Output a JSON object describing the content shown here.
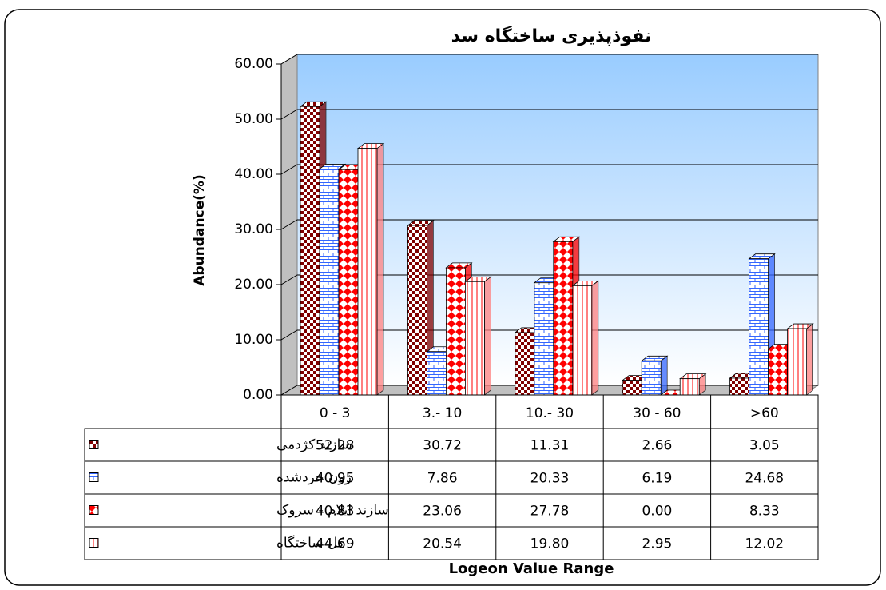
{
  "chart_data": {
    "type": "bar3d",
    "title": "نفوذپذیری ساختگاه سد",
    "y_label": "Abundance(%)",
    "x_label": "Logeon Value Range",
    "categories": [
      "0 - 3",
      "3.- 10",
      "10.- 30",
      "30 - 60",
      ">60"
    ],
    "series": [
      {
        "name": "سازند کژدمی",
        "color": "#800000",
        "values": [
          52.28,
          30.72,
          11.31,
          2.66,
          3.05
        ],
        "value_labels": [
          "52.28",
          "30.72",
          "11.31",
          "2.66",
          "3.05"
        ]
      },
      {
        "name": "زون خردشده",
        "color": "#3366ff",
        "values": [
          40.95,
          7.86,
          20.33,
          6.19,
          24.68
        ],
        "value_labels": [
          "40.95",
          "7.86",
          "20.33",
          "6.19",
          "24.68"
        ]
      },
      {
        "name": "سازند ایلام - سروک",
        "color": "#ff0000",
        "values": [
          40.83,
          23.06,
          27.78,
          0,
          8.33
        ],
        "value_labels": [
          "40.83",
          "23.06",
          "27.78",
          "0.00",
          "8.33"
        ]
      },
      {
        "name": "کل ساختگاه",
        "color": "#ff8080",
        "values": [
          44.69,
          20.54,
          19.8,
          2.95,
          12.02
        ],
        "value_labels": [
          "44.69",
          "20.54",
          "19.80",
          "2.95",
          "12.02"
        ]
      }
    ],
    "ylim": [
      0,
      60
    ],
    "yticks": [
      {
        "value": 0,
        "label": "0.00"
      },
      {
        "value": 10,
        "label": "10.00"
      },
      {
        "value": 20,
        "label": "20.00"
      },
      {
        "value": 30,
        "label": "30.00"
      },
      {
        "value": 40,
        "label": "40.00"
      },
      {
        "value": 50,
        "label": "50.00"
      },
      {
        "value": 60,
        "label": "60.00"
      }
    ],
    "grid": true
  }
}
